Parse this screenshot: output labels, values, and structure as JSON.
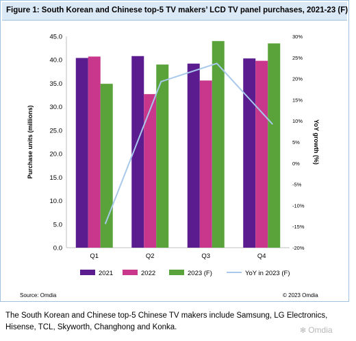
{
  "figure": {
    "title": "Figure 1: South Korean and Chinese top-5 TV makers’ LCD TV panel purchases, 2021-23 (F)",
    "source": "Source: Omdia",
    "copyright": "© 2023 Omdia"
  },
  "caption": "The South Korean and Chinese top-5 Chinese TV makers include Samsung, LG Electronics, Hisense, TCL, Skyworth, Changhong and Konka.",
  "watermark": {
    "icon": "wechat-icon",
    "text": "Omdia"
  },
  "chart_data": {
    "type": "bar",
    "categories": [
      "Q1",
      "Q2",
      "Q3",
      "Q4"
    ],
    "series": [
      {
        "name": "2021",
        "type": "bar",
        "axis": "left",
        "color": "#5b1c8f",
        "values": [
          40.4,
          40.8,
          39.2,
          40.3
        ]
      },
      {
        "name": "2022",
        "type": "bar",
        "axis": "left",
        "color": "#c8378b",
        "values": [
          40.7,
          32.7,
          35.6,
          39.8
        ]
      },
      {
        "name": "2023 (F)",
        "type": "bar",
        "axis": "left",
        "color": "#5aa33a",
        "values": [
          34.9,
          39.0,
          44.0,
          43.5
        ]
      },
      {
        "name": "YoY in 2023 (F)",
        "type": "line",
        "axis": "right",
        "color": "#a9c9ec",
        "values": [
          -14.4,
          19.3,
          23.6,
          9.2
        ]
      }
    ],
    "ylabel": "Purchase units (millions)",
    "ylim": [
      0,
      45
    ],
    "yticks": [
      "0.0",
      "5.0",
      "10.0",
      "15.0",
      "20.0",
      "25.0",
      "30.0",
      "35.0",
      "40.0",
      "45.0"
    ],
    "y2label": "YoY growth (%)",
    "y2lim": [
      -20,
      30
    ],
    "y2ticks": [
      "-20%",
      "-15%",
      "-10%",
      "-5%",
      "0%",
      "5%",
      "10%",
      "15%",
      "20%",
      "25%",
      "30%"
    ],
    "legend_position": "bottom",
    "grid": false
  }
}
